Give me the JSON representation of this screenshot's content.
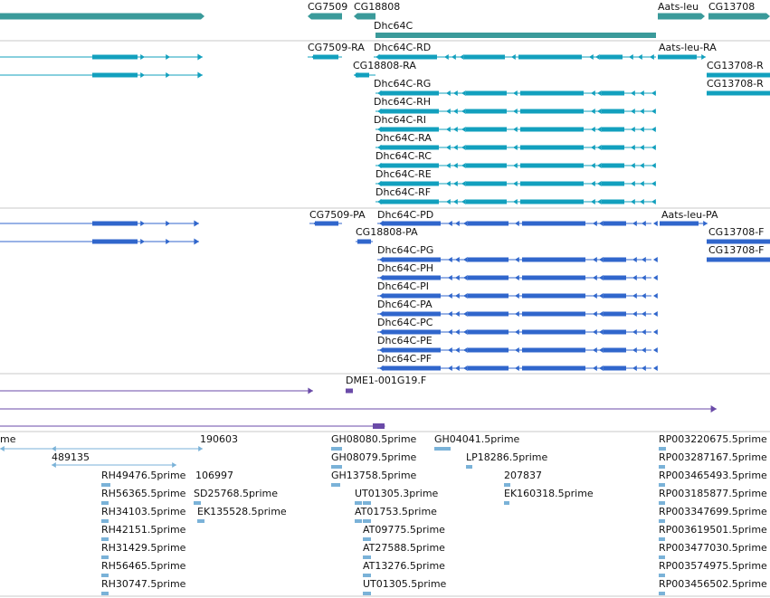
{
  "colors": {
    "gene": "#3a9a9a",
    "flybase_transcript": "#12a0be",
    "refseq_transcript": "#3066cc",
    "cdna_clone": "#6a4aa8",
    "est": "#7ab2d8",
    "separator": "#c8c8c8"
  },
  "tracks": {
    "genes": [
      {
        "name": "CG7509"
      },
      {
        "name": "CG18808"
      },
      {
        "name": "Dhc64C"
      },
      {
        "name": "Aats-leu"
      },
      {
        "name": "CG13708"
      }
    ],
    "flybase_transcripts": [
      {
        "name": "CG7509-RA"
      },
      {
        "name": "Dhc64C-RD"
      },
      {
        "name": "Aats-leu-RA"
      },
      {
        "name": "CG18808-RA"
      },
      {
        "name": "CG13708-R"
      },
      {
        "name": "Dhc64C-RG"
      },
      {
        "name": "CG13708-R"
      },
      {
        "name": "Dhc64C-RH"
      },
      {
        "name": "Dhc64C-RI"
      },
      {
        "name": "Dhc64C-RA"
      },
      {
        "name": "Dhc64C-RC"
      },
      {
        "name": "Dhc64C-RE"
      },
      {
        "name": "Dhc64C-RF"
      }
    ],
    "refseq_transcripts": [
      {
        "name": "CG7509-PA"
      },
      {
        "name": "Dhc64C-PD"
      },
      {
        "name": "Aats-leu-PA"
      },
      {
        "name": "CG18808-PA"
      },
      {
        "name": "CG13708-F"
      },
      {
        "name": "CG13708-F"
      },
      {
        "name": "Dhc64C-PG"
      },
      {
        "name": "Dhc64C-PH"
      },
      {
        "name": "Dhc64C-PI"
      },
      {
        "name": "Dhc64C-PA"
      },
      {
        "name": "Dhc64C-PC"
      },
      {
        "name": "Dhc64C-PE"
      },
      {
        "name": "Dhc64C-PF"
      }
    ],
    "cdna_clones": [
      {
        "name": "DME1-001G19.F"
      }
    ],
    "ests": [
      {
        "name": "me"
      },
      {
        "name": "190603"
      },
      {
        "name": "GH08080.5prime"
      },
      {
        "name": "GH04041.5prime"
      },
      {
        "name": "RP003220675.5prime"
      },
      {
        "name": "489135"
      },
      {
        "name": "GH08079.5prime"
      },
      {
        "name": "LP18286.5prime"
      },
      {
        "name": "RP003287167.5prime"
      },
      {
        "name": "RH49476.5prime"
      },
      {
        "name": "106997"
      },
      {
        "name": "GH13758.5prime"
      },
      {
        "name": "207837"
      },
      {
        "name": "RP003465493.5prime"
      },
      {
        "name": "RH56365.5prime"
      },
      {
        "name": "SD25768.5prime"
      },
      {
        "name": "UT01305.3prime"
      },
      {
        "name": "EK160318.5prime"
      },
      {
        "name": "RP003185877.5prime"
      },
      {
        "name": "RH34103.5prime"
      },
      {
        "name": "EK135528.5prime"
      },
      {
        "name": "AT01753.5prime"
      },
      {
        "name": "RP003347699.5prime"
      },
      {
        "name": "RH42151.5prime"
      },
      {
        "name": "AT09775.5prime"
      },
      {
        "name": "RP003619501.5prime"
      },
      {
        "name": "RH31429.5prime"
      },
      {
        "name": "AT27588.5prime"
      },
      {
        "name": "RP003477030.5prime"
      },
      {
        "name": "RH56465.5prime"
      },
      {
        "name": "AT13276.5prime"
      },
      {
        "name": "RP003574975.5prime"
      },
      {
        "name": "RH30747.5prime"
      },
      {
        "name": "UT01305.5prime"
      },
      {
        "name": "RP003456502.5prime"
      }
    ]
  }
}
